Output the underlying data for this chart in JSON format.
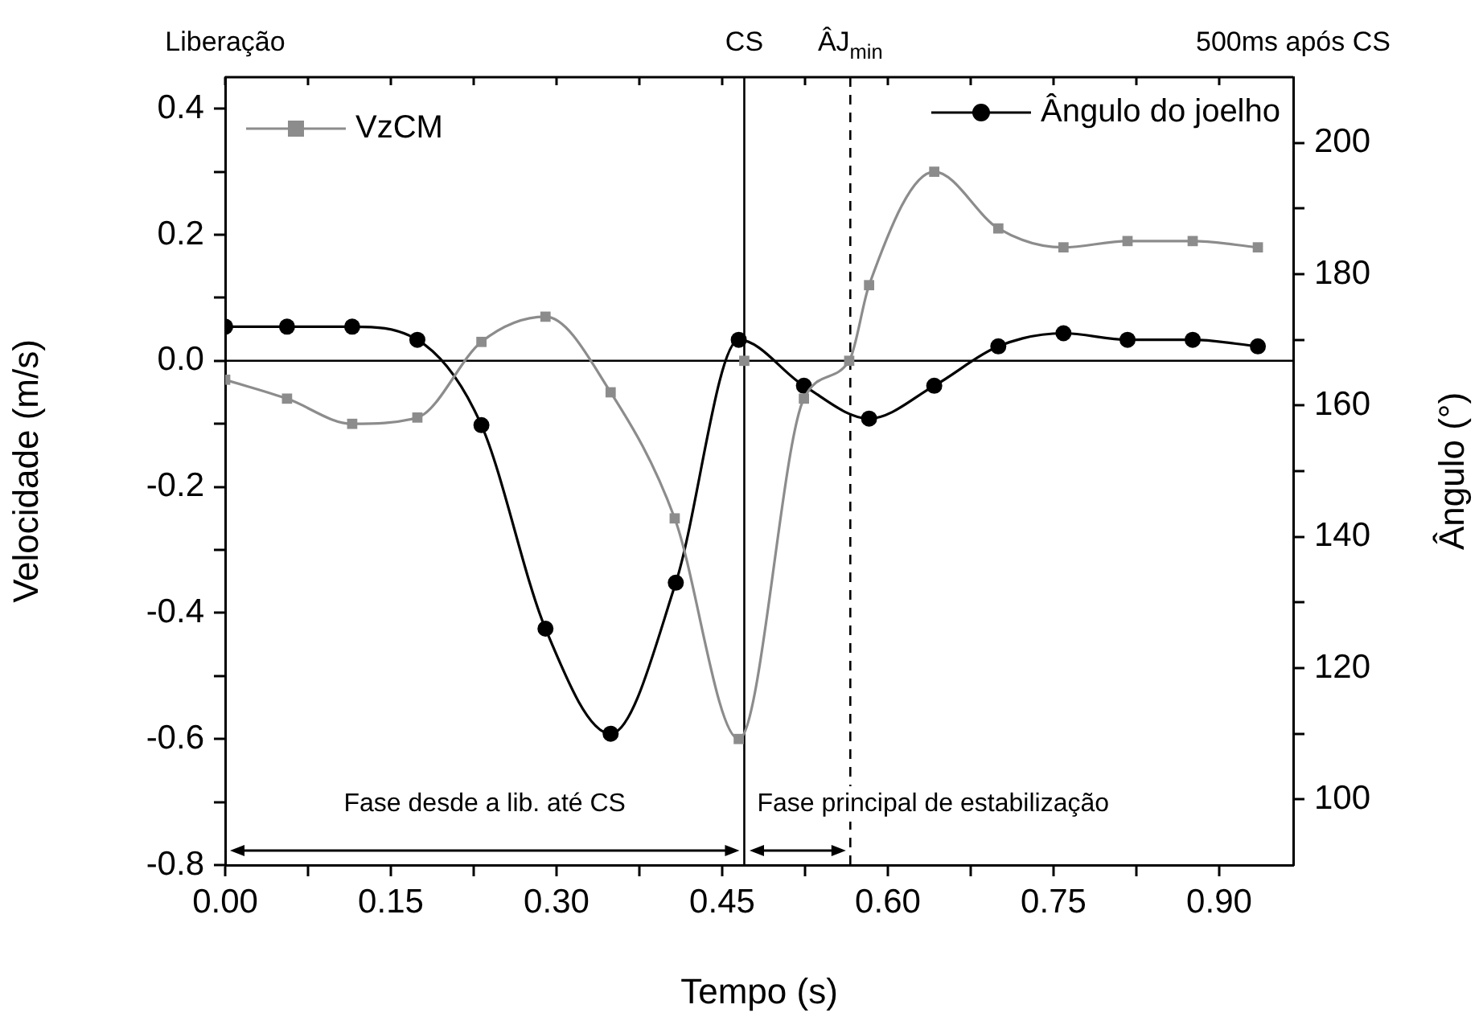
{
  "chart_data": {
    "type": "line",
    "xlabel": "Tempo (s)",
    "ylabel": "Velocidade (m/s)",
    "y2label": "Ângulo (°)",
    "xlim": [
      0,
      0.967
    ],
    "ylim": [
      -0.8,
      0.45
    ],
    "y2lim": [
      90,
      210
    ],
    "xticks": [
      {
        "value": 0,
        "label": "0.00"
      },
      {
        "value": 0.075,
        "label": null
      },
      0.15,
      {
        "value": 0.225,
        "label": null
      },
      {
        "value": 0.3,
        "label": "0.30"
      },
      {
        "value": 0.375,
        "label": null
      },
      0.45,
      {
        "value": 0.525,
        "label": null
      },
      {
        "value": 0.6,
        "label": "0.60"
      },
      {
        "value": 0.675,
        "label": null
      },
      0.75,
      {
        "value": 0.825,
        "label": null
      },
      {
        "value": 0.9,
        "label": "0.90"
      }
    ],
    "yticks": [
      -0.8,
      {
        "value": -0.7,
        "label": null
      },
      -0.6,
      {
        "value": -0.5,
        "label": null
      },
      -0.4,
      {
        "value": -0.3,
        "label": null
      },
      -0.2,
      {
        "value": -0.1,
        "label": null
      },
      {
        "value": 0,
        "label": "0.0"
      },
      {
        "value": 0.1,
        "label": null
      },
      0.2,
      {
        "value": 0.3,
        "label": null
      },
      0.4
    ],
    "y2ticks": [
      100,
      {
        "value": 110,
        "label": null
      },
      120,
      {
        "value": 130,
        "label": null
      },
      140,
      {
        "value": 150,
        "label": null
      },
      160,
      {
        "value": 170,
        "label": null
      },
      180,
      {
        "value": 190,
        "label": null
      },
      200
    ],
    "grid": false,
    "legend": "top",
    "series": [
      {
        "name": "VzCM",
        "color": "#8c8c8c",
        "marker": "square",
        "axis": "y",
        "x": [
          0,
          0.056,
          0.115,
          0.174,
          0.232,
          0.29,
          0.349,
          0.407,
          0.465,
          0.524,
          0.565,
          0.583,
          0.642,
          0.7,
          0.759,
          0.817,
          0.876,
          0.935
        ],
        "values": [
          -0.03,
          -0.06,
          -0.1,
          -0.09,
          0.03,
          0.07,
          -0.05,
          -0.25,
          -0.6,
          -0.06,
          0,
          0.12,
          0.3,
          0.21,
          0.18,
          0.19,
          0.19,
          0.18
        ]
      },
      {
        "name": "Ângulo do joelho",
        "color": "#000000",
        "marker": "circle",
        "axis": "y2",
        "x": [
          0,
          0.056,
          0.115,
          0.174,
          0.232,
          0.29,
          0.349,
          0.408,
          0.465,
          0.524,
          0.583,
          0.642,
          0.7,
          0.759,
          0.817,
          0.876,
          0.935
        ],
        "values": [
          172,
          172,
          172,
          170,
          157,
          126,
          110,
          133,
          170,
          163,
          158,
          163,
          169,
          171,
          170,
          170,
          169
        ]
      },
      {
        "type": "scatter",
        "color": "#8c8c8c",
        "marker": "square",
        "axis": "y",
        "x": [
          0.47
        ],
        "values": [
          0
        ]
      }
    ],
    "ref_lines": [
      {
        "axis": "y",
        "value": 0,
        "color": "#000000",
        "line_style": "solid"
      },
      {
        "axis": "x",
        "value": 0.47,
        "label": "CS",
        "color": "#000000",
        "line_style": "solid"
      },
      {
        "axis": "x",
        "value": 0.566,
        "label": "ÂJ$_{min}$",
        "color": "#000000",
        "line_style": "dashed"
      }
    ],
    "annotations": [
      "Liberação",
      "500ms após CS",
      "Fase desde a lib. até CS",
      "Fase principal de estabilização"
    ]
  }
}
